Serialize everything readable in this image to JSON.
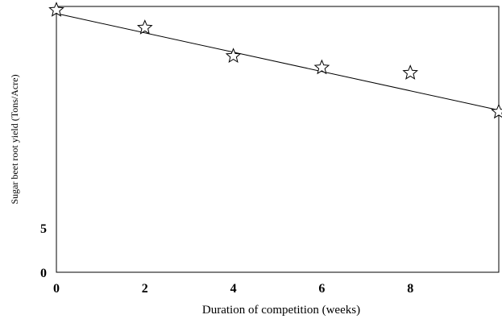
{
  "chart_data": {
    "type": "scatter",
    "title": "",
    "xlabel": "Duration of competition (weeks)",
    "ylabel": "Sugar beet root yield (Tons/Acre)",
    "xlim": [
      0,
      10
    ],
    "ylim": [
      0,
      30
    ],
    "x_ticks": [
      "0",
      "2",
      "4",
      "6",
      "8"
    ],
    "x_tick_values": [
      0,
      2,
      4,
      6,
      8
    ],
    "y_ticks": [
      "0",
      "5"
    ],
    "y_tick_values": [
      0,
      5
    ],
    "grid": false,
    "legend": "none",
    "marker": "star",
    "series": [
      {
        "x": [
          0,
          2,
          4,
          6,
          8,
          10
        ],
        "y": [
          29.6,
          27.6,
          24.4,
          23.1,
          22.5,
          18.1
        ],
        "trendline": {
          "type": "linear",
          "y_at_xmin": 29.2,
          "y_at_xmax": 18.3
        }
      }
    ]
  }
}
